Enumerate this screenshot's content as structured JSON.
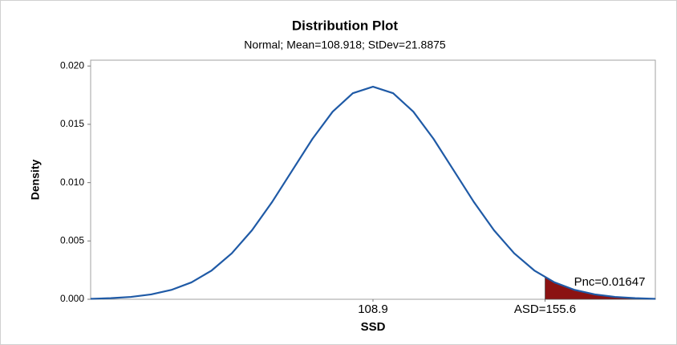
{
  "chart_data": {
    "type": "line",
    "title": "Distribution Plot",
    "subtitle": "Normal; Mean=108.918; StDev=21.8875",
    "x_label": "SSD",
    "y_label": "Density",
    "annotation": "Pnc=0.01647",
    "series": [
      {
        "name": "Normal",
        "color": "#1f5aa6",
        "x": [
          32.312,
          37.784,
          43.256,
          48.728,
          54.199,
          59.671,
          65.143,
          70.615,
          76.087,
          81.559,
          87.031,
          92.502,
          97.974,
          103.446,
          108.918,
          114.39,
          119.862,
          125.334,
          130.806,
          136.277,
          141.749,
          147.221,
          152.693,
          158.165,
          163.637,
          169.109,
          174.58,
          180.052,
          185.524
        ],
        "values": [
          4e-05,
          9.27e-05,
          0.000203,
          0.000415,
          0.000801,
          0.00145,
          0.002467,
          0.003942,
          0.005917,
          0.008345,
          0.011055,
          0.013759,
          0.016085,
          0.017666,
          0.018227,
          0.017666,
          0.016085,
          0.013759,
          0.011055,
          0.008345,
          0.005917,
          0.003942,
          0.002467,
          0.00145,
          0.000801,
          0.000415,
          0.000203,
          9.27e-05,
          4e-05
        ]
      }
    ],
    "shade": {
      "color": "#8b1212",
      "x": [
        155.6,
        158.165,
        163.637,
        169.109,
        174.58,
        180.052,
        185.524
      ],
      "values": [
        0.001875,
        0.00145,
        0.000801,
        0.000415,
        0.000203,
        9.27e-05,
        4e-05
      ]
    },
    "xlim": [
      32.312,
      185.524
    ],
    "xticks": [
      {
        "value": 108.918,
        "label": "108.9"
      },
      {
        "value": 155.6,
        "label": "ASD=155.6"
      }
    ],
    "ylim": [
      0,
      0.0205
    ],
    "yticks": [
      {
        "value": 0,
        "label": "0.000"
      },
      {
        "value": 0.005,
        "label": "0.005"
      },
      {
        "value": 0.01,
        "label": "0.010"
      },
      {
        "value": 0.015,
        "label": "0.015"
      },
      {
        "value": 0.02,
        "label": "0.020"
      }
    ]
  }
}
